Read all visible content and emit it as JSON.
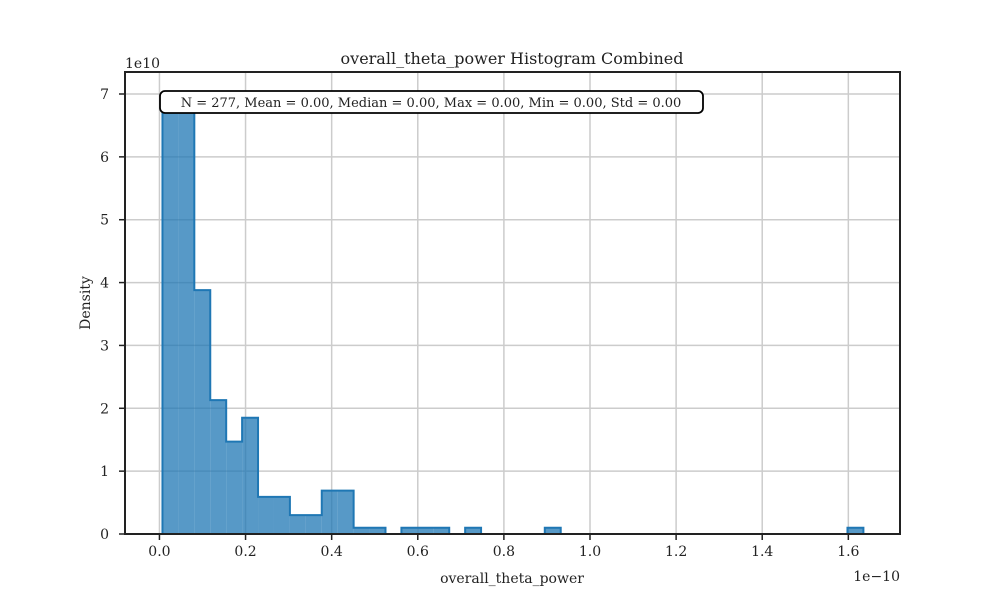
{
  "chart_data": {
    "type": "bar",
    "title": "overall_theta_power Histogram Combined",
    "xlabel": "overall_theta_power",
    "ylabel": "Density",
    "x_offset_label": "1e−10",
    "y_offset_label": "1e10",
    "xlim": [
      -0.08,
      1.72
    ],
    "ylim": [
      0,
      7.35
    ],
    "x_ticks": [
      0.0,
      0.2,
      0.4,
      0.6,
      0.8,
      1.0,
      1.2,
      1.4,
      1.6
    ],
    "x_tick_labels": [
      "0.0",
      "0.2",
      "0.4",
      "0.6",
      "0.8",
      "1.0",
      "1.2",
      "1.4",
      "1.6"
    ],
    "y_ticks": [
      0,
      1,
      2,
      3,
      4,
      5,
      6,
      7
    ],
    "y_tick_labels": [
      "0",
      "1",
      "2",
      "3",
      "4",
      "5",
      "6",
      "7"
    ],
    "grid": true,
    "annotation": "N = 277, Mean = 0.00, Median = 0.00, Max = 0.00, Min = 0.00, Std = 0.00",
    "bin_width": 0.037,
    "bin_edges_start": 0.007,
    "densities": [
      6.9,
      6.9,
      3.88,
      2.13,
      1.47,
      1.85,
      0.59,
      0.59,
      0.3,
      0.3,
      0.69,
      0.69,
      0.1,
      0.1,
      0,
      0.1,
      0.1,
      0.1,
      0,
      0.1,
      0,
      0,
      0,
      0,
      0.1,
      0,
      0,
      0,
      0,
      0,
      0,
      0,
      0,
      0,
      0,
      0,
      0,
      0,
      0,
      0,
      0,
      0,
      0,
      0.1
    ],
    "color": "#1f77b4"
  }
}
